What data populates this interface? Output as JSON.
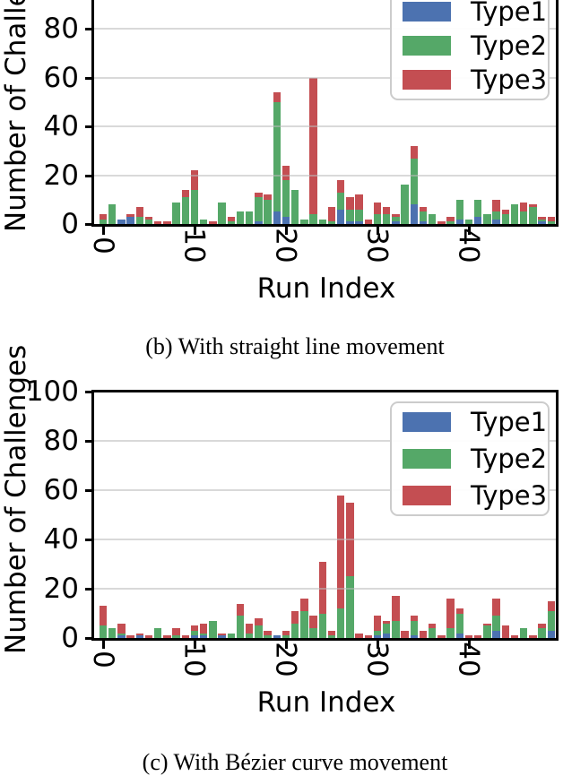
{
  "page": {
    "background": "#ffffff"
  },
  "palette": {
    "type1_blue": "#4C72B0",
    "type2_green": "#55A868",
    "type3_red": "#C44E52",
    "grid": "#B9B9B9",
    "axis": "#000000"
  },
  "legend": {
    "items": [
      {
        "label": "Type1",
        "color": "#4C72B0"
      },
      {
        "label": "Type2",
        "color": "#55A868"
      },
      {
        "label": "Type3",
        "color": "#C44E52"
      }
    ]
  },
  "chart_data": [
    {
      "type": "bar",
      "stacked": true,
      "grid": true,
      "legend_position": "upper right",
      "caption": "(b) With straight line movement",
      "xlabel": "Run Index",
      "ylabel": "Number of Challenges",
      "ylim": [
        0,
        100
      ],
      "yticks": [
        0,
        20,
        40,
        60,
        80
      ],
      "xticks": [
        0,
        10,
        20,
        30,
        40
      ],
      "n_bars": 50,
      "series": [
        {
          "name": "Type1",
          "color": "#4C72B0",
          "values": [
            0,
            0,
            2,
            3,
            0,
            0,
            0,
            0,
            0,
            0,
            0,
            0,
            0,
            0,
            0,
            0,
            0,
            1,
            0,
            5,
            3,
            0,
            0,
            0,
            0,
            0,
            6,
            1,
            1,
            0,
            0,
            0,
            1,
            0,
            8,
            1,
            0,
            0,
            0,
            2,
            0,
            3,
            0,
            2,
            0,
            0,
            0,
            0,
            1,
            0
          ]
        },
        {
          "name": "Type2",
          "color": "#55A868",
          "values": [
            2,
            8,
            0,
            0,
            3,
            2,
            0,
            0,
            9,
            11,
            14,
            2,
            0,
            9,
            1,
            5,
            5,
            10,
            10,
            45,
            15,
            14,
            2,
            4,
            2,
            1,
            7,
            5,
            5,
            0,
            4,
            4,
            2,
            16,
            19,
            4,
            4,
            0,
            1,
            8,
            2,
            7,
            4,
            3,
            4,
            8,
            5,
            7,
            1,
            1
          ]
        },
        {
          "name": "Type3",
          "color": "#C44E52",
          "values": [
            2,
            0,
            0,
            1,
            4,
            1,
            1,
            1,
            0,
            3,
            8,
            0,
            1,
            0,
            2,
            0,
            0,
            2,
            2,
            4,
            6,
            0,
            0,
            56,
            0,
            6,
            5,
            5,
            6,
            2,
            5,
            3,
            1,
            0,
            5,
            2,
            0,
            1,
            2,
            0,
            0,
            0,
            0,
            5,
            2,
            0,
            4,
            1,
            1,
            2
          ]
        }
      ]
    },
    {
      "type": "bar",
      "stacked": true,
      "grid": true,
      "legend_position": "upper right",
      "caption": "(c) With Bézier curve movement",
      "xlabel": "Run Index",
      "ylabel": "Number of Challenges",
      "ylim": [
        0,
        100
      ],
      "yticks": [
        0,
        20,
        40,
        60,
        80,
        100
      ],
      "xticks": [
        0,
        10,
        20,
        30,
        40
      ],
      "n_bars": 50,
      "series": [
        {
          "name": "Type1",
          "color": "#4C72B0",
          "values": [
            0,
            0,
            1,
            0,
            1,
            0,
            0,
            0,
            0,
            0,
            1,
            1,
            0,
            1,
            0,
            0,
            0,
            0,
            0,
            1,
            0,
            0,
            0,
            0,
            0,
            0,
            0,
            0,
            0,
            0,
            1,
            2,
            0,
            0,
            1,
            0,
            0,
            0,
            0,
            2,
            0,
            0,
            0,
            3,
            0,
            0,
            0,
            0,
            0,
            3
          ]
        },
        {
          "name": "Type2",
          "color": "#55A868",
          "values": [
            5,
            4,
            1,
            0,
            0,
            0,
            4,
            0,
            1,
            0,
            2,
            1,
            7,
            0,
            2,
            9,
            2,
            5,
            1,
            0,
            1,
            6,
            11,
            4,
            10,
            1,
            12,
            25,
            0,
            0,
            2,
            4,
            7,
            0,
            6,
            0,
            4,
            0,
            4,
            8,
            0,
            0,
            5,
            6,
            0,
            0,
            4,
            0,
            4,
            8
          ]
        },
        {
          "name": "Type3",
          "color": "#C44E52",
          "values": [
            8,
            0,
            4,
            1,
            1,
            1,
            0,
            1,
            3,
            1,
            2,
            4,
            0,
            1,
            0,
            5,
            4,
            3,
            2,
            0,
            2,
            5,
            5,
            5,
            21,
            2,
            46,
            30,
            2,
            1,
            6,
            1,
            10,
            3,
            2,
            3,
            2,
            1,
            12,
            2,
            1,
            1,
            1,
            7,
            5,
            1,
            0,
            1,
            2,
            4
          ]
        }
      ]
    }
  ]
}
